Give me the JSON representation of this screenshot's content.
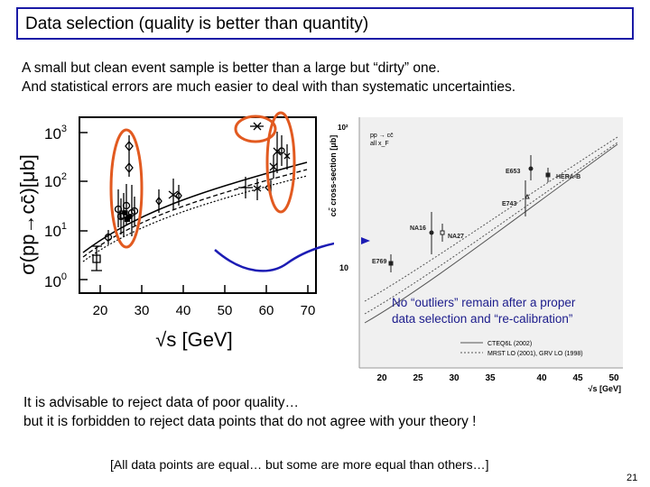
{
  "title": "Data selection (quality is better than quantity)",
  "intro": [
    "A small but clean event sample is better than a large but “dirty” one.",
    "And statistical errors are much easier to deal with than systematic uncertainties."
  ],
  "left_plot": {
    "y_axis_label": "σ(pp→cc̄)[μb]",
    "x_axis_label": "√s [GeV]",
    "y_ticks": [
      {
        "base": "10",
        "exp": "3"
      },
      {
        "base": "10",
        "exp": "2"
      },
      {
        "base": "10",
        "exp": "1"
      },
      {
        "base": "10",
        "exp": "0"
      }
    ],
    "x_ticks": [
      "20",
      "30",
      "40",
      "50",
      "60",
      "70"
    ]
  },
  "right_plot": {
    "y_axis_label": "cc̄ cross-section [μb]",
    "y_ticks": [
      "10²",
      "10"
    ],
    "x_axis_label": "√s [GeV]",
    "x_ticks": [
      "20",
      "25",
      "30",
      "35",
      "40",
      "45",
      "50"
    ],
    "inset_lines": [
      "pp → cc̄",
      "all x_F"
    ],
    "labels": {
      "e653": "E653",
      "herab": "HERA-B",
      "e743": "E743",
      "na16": "NA16",
      "na27": "NA27",
      "e769": "E769"
    },
    "legend": [
      {
        "label": "CTEQ6L (2002)",
        "style": "solid"
      },
      {
        "label": "MRST LO (2001), GRV LO (1998)",
        "style": "dotted"
      }
    ]
  },
  "callout": [
    "No “outliers” remain after a proper",
    "data selection and “re-calibration”"
  ],
  "lower_text": [
    "It is advisable to reject data of poor quality…",
    "but it is forbidden to reject data points that do not agree with your theory !"
  ],
  "footnote": "[All data points are equal… but some are more equal than others…]",
  "page_number": "21",
  "colors": {
    "title_border": "#1a1aa6",
    "ellipse": "#e25a20",
    "arrow": "#1c1cb4"
  }
}
